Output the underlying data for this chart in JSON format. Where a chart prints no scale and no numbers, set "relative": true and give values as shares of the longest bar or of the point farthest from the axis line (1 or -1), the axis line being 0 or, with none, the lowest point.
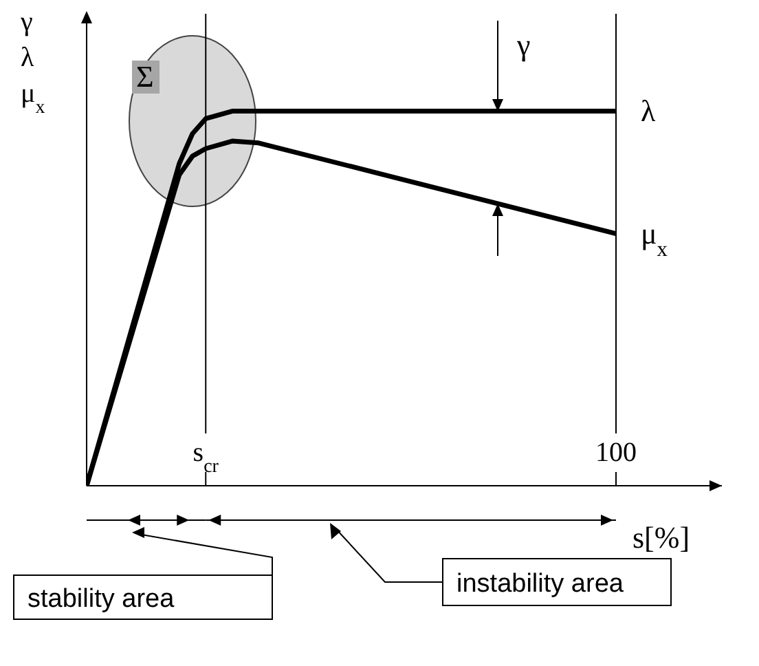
{
  "chart_data": {
    "type": "line",
    "relative": true,
    "ylabel": "γ\nλ\nμ$_{x}$",
    "xlabel": "s[%]",
    "categories": [
      null,
      null,
      null,
      null,
      null,
      null,
      null,
      null,
      null,
      "s$_{cr}$",
      null,
      null,
      null,
      null,
      null,
      null,
      null,
      null,
      null,
      null,
      null,
      null,
      null,
      null,
      null,
      null,
      null,
      null,
      null,
      null,
      null,
      null,
      null,
      null,
      null,
      null,
      null,
      null,
      null,
      null,
      "100",
      null,
      null,
      null,
      null,
      null,
      null,
      null,
      null
    ],
    "series": [
      {
        "name": "λ",
        "color": "#000000",
        "values": [
          0,
          null,
          null,
          null,
          null,
          null,
          null,
          0.86,
          0.94,
          0.98,
          null,
          1,
          null,
          null,
          null,
          null,
          null,
          null,
          null,
          null,
          null,
          null,
          null,
          null,
          null,
          null,
          null,
          null,
          null,
          null,
          null,
          null,
          null,
          null,
          null,
          null,
          null,
          null,
          null,
          null,
          1,
          null,
          null,
          null,
          null,
          null,
          null,
          null,
          null
        ]
      },
      {
        "name": "μ$_{x}$",
        "color": "#000000",
        "values": [
          0,
          null,
          null,
          null,
          null,
          null,
          null,
          0.83,
          0.88,
          0.9,
          null,
          0.92,
          null,
          0.915,
          null,
          null,
          null,
          null,
          null,
          null,
          null,
          null,
          null,
          null,
          null,
          null,
          null,
          null,
          null,
          null,
          null,
          null,
          null,
          null,
          null,
          null,
          null,
          null,
          null,
          null,
          0.673,
          null,
          null,
          null,
          null,
          null,
          null,
          null,
          null
        ]
      }
    ],
    "ref_lines": [
      {
        "axis": "x",
        "value": "s$_{cr}$",
        "label": null
      },
      {
        "axis": "x",
        "value": "100",
        "label": null
      }
    ],
    "annotations": [
      "Σ",
      "γ",
      "stability area",
      "instability area"
    ],
    "marker": "none",
    "line_style": "solid"
  }
}
